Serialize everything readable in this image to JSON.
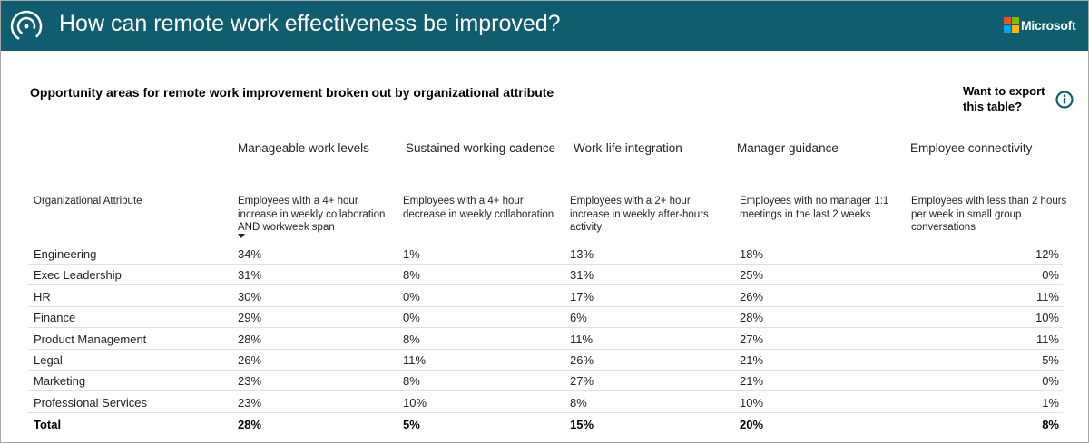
{
  "header": {
    "title": "How can remote work effectiveness be improved?",
    "brand": "Microsoft"
  },
  "subtitle": "Opportunity areas for remote work improvement broken out by organizational attribute",
  "export_note": "Want to export this table?",
  "table": {
    "attribute_header": "Organizational Attribute",
    "groups": [
      "Manageable work levels",
      "Sustained working cadence",
      "Work-life integration",
      "Manager guidance",
      "Employee connectivity"
    ],
    "descriptions": [
      "Employees with a 4+ hour increase in weekly collaboration AND workweek span",
      "Employees with a 4+ hour decrease in weekly collaboration",
      "Employees with a 2+ hour increase in weekly after-hours activity",
      "Employees with no manager 1:1 meetings in the last 2 weeks",
      "Employees with less than 2 hours per week in small group conversations"
    ],
    "rows": [
      [
        "Engineering",
        "34%",
        "1%",
        "13%",
        "18%",
        "12%"
      ],
      [
        "Exec Leadership",
        "31%",
        "8%",
        "31%",
        "25%",
        "0%"
      ],
      [
        "HR",
        "30%",
        "0%",
        "17%",
        "26%",
        "11%"
      ],
      [
        "Finance",
        "29%",
        "0%",
        "6%",
        "28%",
        "10%"
      ],
      [
        "Product Management",
        "28%",
        "8%",
        "11%",
        "27%",
        "11%"
      ],
      [
        "Legal",
        "26%",
        "11%",
        "26%",
        "21%",
        "5%"
      ],
      [
        "Marketing",
        "23%",
        "8%",
        "27%",
        "21%",
        "0%"
      ],
      [
        "Professional Services",
        "23%",
        "10%",
        "8%",
        "10%",
        "1%"
      ]
    ],
    "total": [
      "Total",
      "28%",
      "5%",
      "15%",
      "20%",
      "8%"
    ]
  }
}
